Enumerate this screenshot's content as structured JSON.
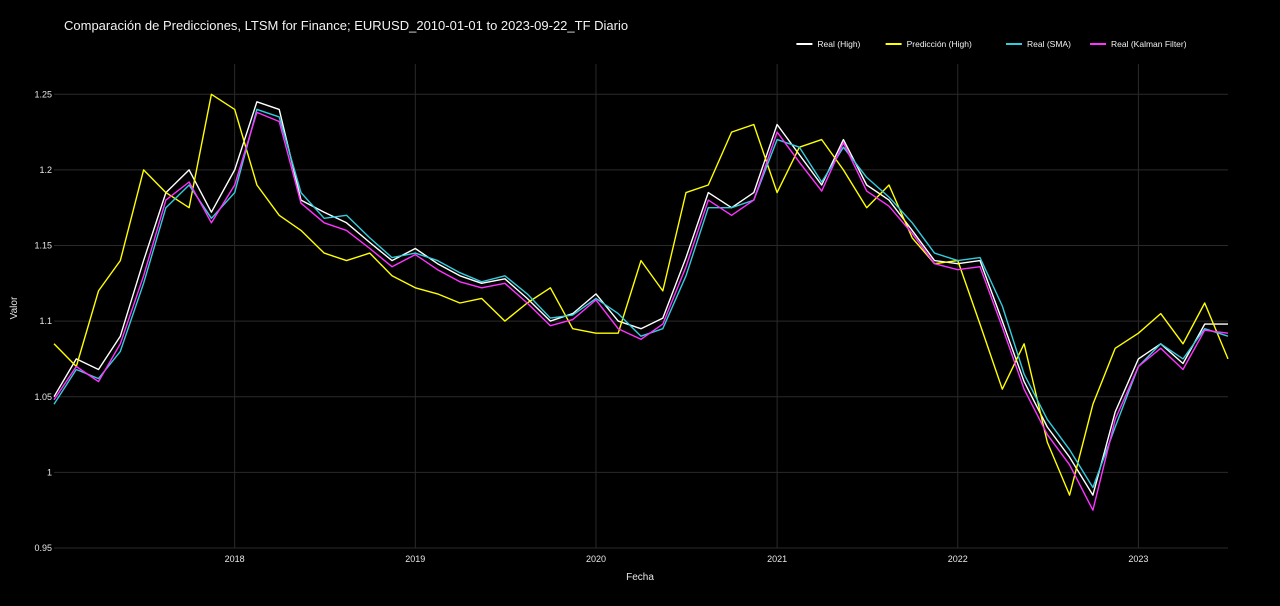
{
  "chart_data": {
    "type": "line",
    "title": "Comparación de Predicciones, LTSM for Finance; EURUSD_2010-01-01 to 2023-09-22_TF Diario",
    "xlabel": "Fecha",
    "ylabel": "Valor",
    "xlim": [
      "2017-01-01",
      "2023-07-01"
    ],
    "ylim": [
      0.95,
      1.27
    ],
    "x_ticks": [
      "2018",
      "2019",
      "2020",
      "2021",
      "2022",
      "2023"
    ],
    "y_ticks": [
      "0.95",
      "1",
      "1.05",
      "1.1",
      "1.15",
      "1.2",
      "1.25"
    ],
    "grid": true,
    "legend_position": "top-right",
    "colors": {
      "background": "#000000",
      "grid": "#2a2a2a",
      "text": "#e6e6e6"
    },
    "series": [
      {
        "name": "Real (High)",
        "color": "#ffffff",
        "x": [
          "2017-01-01",
          "2017-02-15",
          "2017-04-01",
          "2017-05-15",
          "2017-07-01",
          "2017-08-15",
          "2017-10-01",
          "2017-11-15",
          "2018-01-01",
          "2018-02-15",
          "2018-04-01",
          "2018-05-15",
          "2018-07-01",
          "2018-08-15",
          "2018-10-01",
          "2018-11-15",
          "2019-01-01",
          "2019-02-15",
          "2019-04-01",
          "2019-05-15",
          "2019-07-01",
          "2019-08-15",
          "2019-10-01",
          "2019-11-15",
          "2020-01-01",
          "2020-02-15",
          "2020-04-01",
          "2020-05-15",
          "2020-07-01",
          "2020-08-15",
          "2020-10-01",
          "2020-11-15",
          "2021-01-01",
          "2021-02-15",
          "2021-04-01",
          "2021-05-15",
          "2021-07-01",
          "2021-08-15",
          "2021-10-01",
          "2021-11-15",
          "2022-01-01",
          "2022-02-15",
          "2022-04-01",
          "2022-05-15",
          "2022-07-01",
          "2022-08-15",
          "2022-10-01",
          "2022-11-15",
          "2023-01-01",
          "2023-02-15",
          "2023-04-01",
          "2023-05-15",
          "2023-07-01"
        ],
        "y": [
          1.05,
          1.075,
          1.068,
          1.09,
          1.14,
          1.185,
          1.2,
          1.172,
          1.2,
          1.245,
          1.24,
          1.18,
          1.172,
          1.165,
          1.152,
          1.14,
          1.148,
          1.138,
          1.13,
          1.125,
          1.128,
          1.115,
          1.1,
          1.105,
          1.118,
          1.1,
          1.095,
          1.102,
          1.142,
          1.185,
          1.175,
          1.185,
          1.23,
          1.21,
          1.19,
          1.22,
          1.19,
          1.18,
          1.16,
          1.14,
          1.138,
          1.14,
          1.1,
          1.06,
          1.03,
          1.01,
          0.985,
          1.04,
          1.075,
          1.085,
          1.072,
          1.098,
          1.098
        ]
      },
      {
        "name": "Predicción (High)",
        "color": "#ffff00",
        "x": [
          "2017-01-01",
          "2017-02-15",
          "2017-04-01",
          "2017-05-15",
          "2017-07-01",
          "2017-08-15",
          "2017-10-01",
          "2017-11-15",
          "2018-01-01",
          "2018-02-15",
          "2018-04-01",
          "2018-05-15",
          "2018-07-01",
          "2018-08-15",
          "2018-10-01",
          "2018-11-15",
          "2019-01-01",
          "2019-02-15",
          "2019-04-01",
          "2019-05-15",
          "2019-07-01",
          "2019-08-15",
          "2019-10-01",
          "2019-11-15",
          "2020-01-01",
          "2020-02-15",
          "2020-04-01",
          "2020-05-15",
          "2020-07-01",
          "2020-08-15",
          "2020-10-01",
          "2020-11-15",
          "2021-01-01",
          "2021-02-15",
          "2021-04-01",
          "2021-05-15",
          "2021-07-01",
          "2021-08-15",
          "2021-10-01",
          "2021-11-15",
          "2022-01-01",
          "2022-02-15",
          "2022-04-01",
          "2022-05-15",
          "2022-07-01",
          "2022-08-15",
          "2022-10-01",
          "2022-11-15",
          "2023-01-01",
          "2023-02-15",
          "2023-04-01",
          "2023-05-15",
          "2023-07-01"
        ],
        "y": [
          1.085,
          1.07,
          1.12,
          1.14,
          1.2,
          1.185,
          1.175,
          1.25,
          1.24,
          1.19,
          1.17,
          1.16,
          1.145,
          1.14,
          1.145,
          1.13,
          1.122,
          1.118,
          1.112,
          1.115,
          1.1,
          1.112,
          1.122,
          1.095,
          1.092,
          1.092,
          1.14,
          1.12,
          1.185,
          1.19,
          1.225,
          1.23,
          1.185,
          1.215,
          1.22,
          1.2,
          1.175,
          1.19,
          1.155,
          1.138,
          1.14,
          1.098,
          1.055,
          1.085,
          1.02,
          0.985,
          1.045,
          1.082,
          1.092,
          1.105,
          1.085,
          1.112,
          1.075
        ]
      },
      {
        "name": "Real (SMA)",
        "color": "#33ccdd",
        "x": [
          "2017-01-01",
          "2017-02-15",
          "2017-04-01",
          "2017-05-15",
          "2017-07-01",
          "2017-08-15",
          "2017-10-01",
          "2017-11-15",
          "2018-01-01",
          "2018-02-15",
          "2018-04-01",
          "2018-05-15",
          "2018-07-01",
          "2018-08-15",
          "2018-10-01",
          "2018-11-15",
          "2019-01-01",
          "2019-02-15",
          "2019-04-01",
          "2019-05-15",
          "2019-07-01",
          "2019-08-15",
          "2019-10-01",
          "2019-11-15",
          "2020-01-01",
          "2020-02-15",
          "2020-04-01",
          "2020-05-15",
          "2020-07-01",
          "2020-08-15",
          "2020-10-01",
          "2020-11-15",
          "2021-01-01",
          "2021-02-15",
          "2021-04-01",
          "2021-05-15",
          "2021-07-01",
          "2021-08-15",
          "2021-10-01",
          "2021-11-15",
          "2022-01-01",
          "2022-02-15",
          "2022-04-01",
          "2022-05-15",
          "2022-07-01",
          "2022-08-15",
          "2022-10-01",
          "2022-11-15",
          "2023-01-01",
          "2023-02-15",
          "2023-04-01",
          "2023-05-15",
          "2023-07-01"
        ],
        "y": [
          1.045,
          1.068,
          1.062,
          1.08,
          1.125,
          1.175,
          1.19,
          1.168,
          1.185,
          1.24,
          1.235,
          1.185,
          1.168,
          1.17,
          1.155,
          1.142,
          1.145,
          1.14,
          1.132,
          1.126,
          1.13,
          1.118,
          1.102,
          1.104,
          1.115,
          1.105,
          1.09,
          1.095,
          1.13,
          1.175,
          1.175,
          1.18,
          1.22,
          1.215,
          1.192,
          1.215,
          1.195,
          1.182,
          1.165,
          1.145,
          1.14,
          1.142,
          1.11,
          1.065,
          1.035,
          1.015,
          0.99,
          1.03,
          1.07,
          1.085,
          1.075,
          1.095,
          1.09
        ]
      },
      {
        "name": "Real (Kalman Filter)",
        "color": "#ff33ff",
        "x": [
          "2017-01-01",
          "2017-02-15",
          "2017-04-01",
          "2017-05-15",
          "2017-07-01",
          "2017-08-15",
          "2017-10-01",
          "2017-11-15",
          "2018-01-01",
          "2018-02-15",
          "2018-04-01",
          "2018-05-15",
          "2018-07-01",
          "2018-08-15",
          "2018-10-01",
          "2018-11-15",
          "2019-01-01",
          "2019-02-15",
          "2019-04-01",
          "2019-05-15",
          "2019-07-01",
          "2019-08-15",
          "2019-10-01",
          "2019-11-15",
          "2020-01-01",
          "2020-02-15",
          "2020-04-01",
          "2020-05-15",
          "2020-07-01",
          "2020-08-15",
          "2020-10-01",
          "2020-11-15",
          "2021-01-01",
          "2021-02-15",
          "2021-04-01",
          "2021-05-15",
          "2021-07-01",
          "2021-08-15",
          "2021-10-01",
          "2021-11-15",
          "2022-01-01",
          "2022-02-15",
          "2022-04-01",
          "2022-05-15",
          "2022-07-01",
          "2022-08-15",
          "2022-10-01",
          "2022-11-15",
          "2023-01-01",
          "2023-02-15",
          "2023-04-01",
          "2023-05-15",
          "2023-07-01"
        ],
        "y": [
          1.048,
          1.07,
          1.06,
          1.085,
          1.13,
          1.18,
          1.192,
          1.165,
          1.19,
          1.238,
          1.232,
          1.178,
          1.165,
          1.16,
          1.148,
          1.136,
          1.144,
          1.134,
          1.126,
          1.122,
          1.125,
          1.112,
          1.097,
          1.101,
          1.114,
          1.095,
          1.088,
          1.098,
          1.136,
          1.18,
          1.17,
          1.18,
          1.225,
          1.205,
          1.186,
          1.218,
          1.186,
          1.176,
          1.158,
          1.138,
          1.134,
          1.136,
          1.096,
          1.055,
          1.025,
          1.005,
          0.975,
          1.035,
          1.07,
          1.082,
          1.068,
          1.094,
          1.092
        ]
      }
    ]
  }
}
